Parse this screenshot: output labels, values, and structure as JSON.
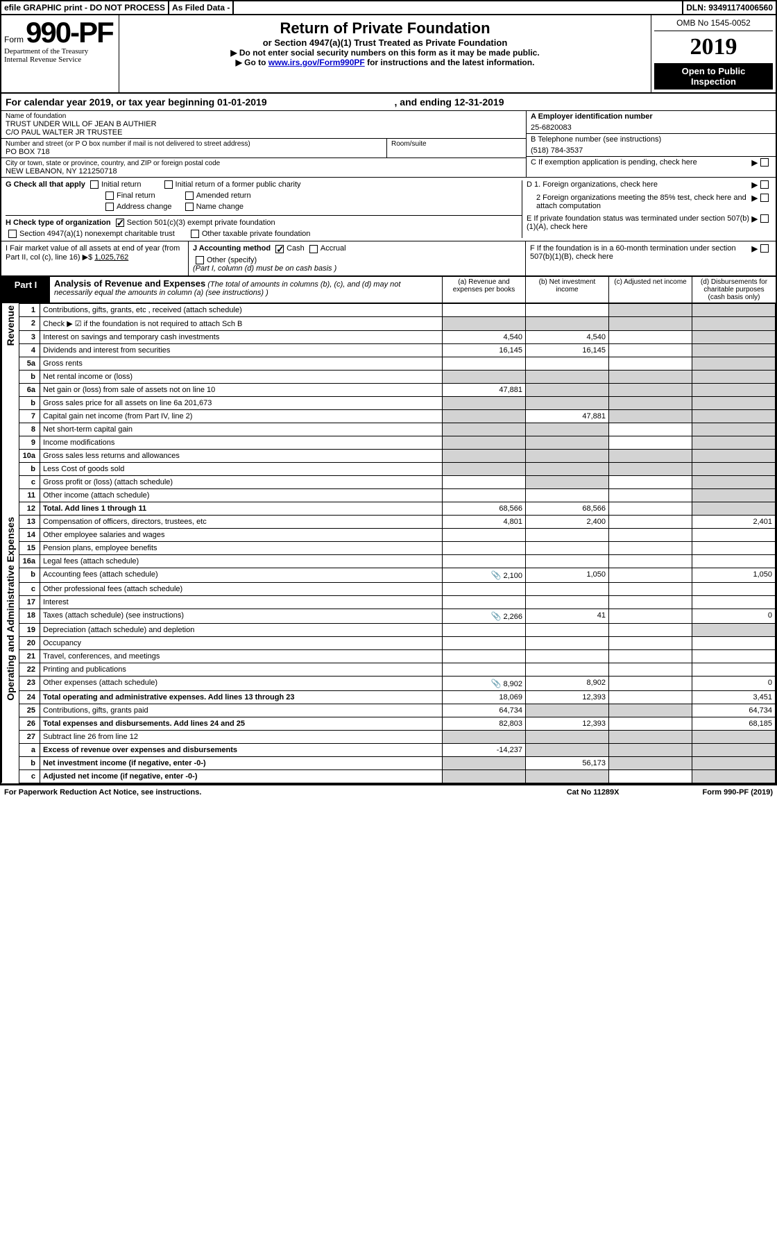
{
  "topbar": {
    "efile": "efile GRAPHIC print - DO NOT PROCESS",
    "asfiled": "As Filed Data -",
    "dln": "DLN: 93491174006560"
  },
  "header": {
    "form_prefix": "Form",
    "form_number": "990-PF",
    "dept1": "Department of the Treasury",
    "dept2": "Internal Revenue Service",
    "title": "Return of Private Foundation",
    "subtitle": "or Section 4947(a)(1) Trust Treated as Private Foundation",
    "instr1": "▶ Do not enter social security numbers on this form as it may be made public.",
    "instr2_pre": "▶ Go to ",
    "instr2_link": "www.irs.gov/Form990PF",
    "instr2_post": " for instructions and the latest information.",
    "omb": "OMB No 1545-0052",
    "year": "2019",
    "open": "Open to Public Inspection"
  },
  "cal_year": {
    "prefix": "For calendar year 2019, or tax year beginning ",
    "begin": "01-01-2019",
    "mid": " , and ending ",
    "end": "12-31-2019"
  },
  "name_block": {
    "label": "Name of foundation",
    "line1": "TRUST UNDER WILL OF JEAN B AUTHIER",
    "line2": "C/O PAUL WALTER JR TRUSTEE",
    "addr_label": "Number and street (or P O box number if mail is not delivered to street address)",
    "addr": "PO BOX 718",
    "room_label": "Room/suite",
    "city_label": "City or town, state or province, country, and ZIP or foreign postal code",
    "city": "NEW LEBANON, NY 121250718"
  },
  "right_block": {
    "a_label": "A Employer identification number",
    "a_val": "25-6820083",
    "b_label": "B Telephone number (see instructions)",
    "b_val": "(518) 784-3537",
    "c_label": "C If exemption application is pending, check here",
    "d1": "D 1. Foreign organizations, check here",
    "d2": "2 Foreign organizations meeting the 85% test, check here and attach computation",
    "e": "E If private foundation status was terminated under section 507(b)(1)(A), check here",
    "f": "F If the foundation is in a 60-month termination under section 507(b)(1)(B), check here"
  },
  "g_section": {
    "label": "G Check all that apply",
    "initial": "Initial return",
    "initial_former": "Initial return of a former public charity",
    "final": "Final return",
    "amended": "Amended return",
    "addr_change": "Address change",
    "name_change": "Name change"
  },
  "h_section": {
    "label": "H Check type of organization",
    "c3": "Section 501(c)(3) exempt private foundation",
    "trust": "Section 4947(a)(1) nonexempt charitable trust",
    "other": "Other taxable private foundation"
  },
  "i_section": {
    "label": "I Fair market value of all assets at end of year (from Part II, col (c), line 16) ▶$",
    "val": "1,025,762"
  },
  "j_section": {
    "label": "J Accounting method",
    "cash": "Cash",
    "accrual": "Accrual",
    "other": "Other (specify)",
    "note": "(Part I, column (d) must be on cash basis )"
  },
  "part1": {
    "label": "Part I",
    "title": "Analysis of Revenue and Expenses",
    "sub": " (The total of amounts in columns (b), (c), and (d) may not necessarily equal the amounts in column (a) (see instructions) )",
    "col_a": "(a) Revenue and expenses per books",
    "col_b": "(b) Net investment income",
    "col_c": "(c) Adjusted net income",
    "col_d": "(d) Disbursements for charitable purposes (cash basis only)"
  },
  "side_labels": {
    "revenue": "Revenue",
    "expenses": "Operating and Administrative Expenses"
  },
  "rows": [
    {
      "n": "1",
      "d": "Contributions, gifts, grants, etc , received (attach schedule)",
      "a": "",
      "b": "",
      "c": "",
      "dd": "",
      "cgrey": true,
      "dgrey": true
    },
    {
      "n": "2",
      "d": "Check ▶ ☑ if the foundation is not required to attach Sch B",
      "a": "",
      "b": "",
      "c": "",
      "dd": "",
      "agrey": true,
      "bgrey": true,
      "cgrey": true,
      "dgrey": true
    },
    {
      "n": "3",
      "d": "Interest on savings and temporary cash investments",
      "a": "4,540",
      "b": "4,540",
      "c": "",
      "dd": "",
      "dgrey": true
    },
    {
      "n": "4",
      "d": "Dividends and interest from securities",
      "a": "16,145",
      "b": "16,145",
      "c": "",
      "dd": "",
      "dgrey": true
    },
    {
      "n": "5a",
      "d": "Gross rents",
      "a": "",
      "b": "",
      "c": "",
      "dd": "",
      "dgrey": true
    },
    {
      "n": "b",
      "d": "Net rental income or (loss)",
      "a": "",
      "b": "",
      "c": "",
      "dd": "",
      "agrey": true,
      "bgrey": true,
      "cgrey": true,
      "dgrey": true
    },
    {
      "n": "6a",
      "d": "Net gain or (loss) from sale of assets not on line 10",
      "a": "47,881",
      "b": "",
      "c": "",
      "dd": "",
      "bgrey": true,
      "cgrey": true,
      "dgrey": true
    },
    {
      "n": "b",
      "d": "Gross sales price for all assets on line 6a          201,673",
      "a": "",
      "b": "",
      "c": "",
      "dd": "",
      "agrey": true,
      "bgrey": true,
      "cgrey": true,
      "dgrey": true
    },
    {
      "n": "7",
      "d": "Capital gain net income (from Part IV, line 2)",
      "a": "",
      "b": "47,881",
      "c": "",
      "dd": "",
      "agrey": true,
      "cgrey": true,
      "dgrey": true
    },
    {
      "n": "8",
      "d": "Net short-term capital gain",
      "a": "",
      "b": "",
      "c": "",
      "dd": "",
      "agrey": true,
      "bgrey": true,
      "dgrey": true
    },
    {
      "n": "9",
      "d": "Income modifications",
      "a": "",
      "b": "",
      "c": "",
      "dd": "",
      "agrey": true,
      "bgrey": true,
      "dgrey": true
    },
    {
      "n": "10a",
      "d": "Gross sales less returns and allowances",
      "a": "",
      "b": "",
      "c": "",
      "dd": "",
      "agrey": true,
      "bgrey": true,
      "cgrey": true,
      "dgrey": true
    },
    {
      "n": "b",
      "d": "Less Cost of goods sold",
      "a": "",
      "b": "",
      "c": "",
      "dd": "",
      "agrey": true,
      "bgrey": true,
      "cgrey": true,
      "dgrey": true
    },
    {
      "n": "c",
      "d": "Gross profit or (loss) (attach schedule)",
      "a": "",
      "b": "",
      "c": "",
      "dd": "",
      "bgrey": true,
      "dgrey": true
    },
    {
      "n": "11",
      "d": "Other income (attach schedule)",
      "a": "",
      "b": "",
      "c": "",
      "dd": "",
      "dgrey": true
    },
    {
      "n": "12",
      "d": "Total. Add lines 1 through 11",
      "a": "68,566",
      "b": "68,566",
      "c": "",
      "dd": "",
      "bold": true,
      "dgrey": true
    }
  ],
  "exp_rows": [
    {
      "n": "13",
      "d": "Compensation of officers, directors, trustees, etc",
      "a": "4,801",
      "b": "2,400",
      "c": "",
      "dd": "2,401"
    },
    {
      "n": "14",
      "d": "Other employee salaries and wages",
      "a": "",
      "b": "",
      "c": "",
      "dd": ""
    },
    {
      "n": "15",
      "d": "Pension plans, employee benefits",
      "a": "",
      "b": "",
      "c": "",
      "dd": ""
    },
    {
      "n": "16a",
      "d": "Legal fees (attach schedule)",
      "a": "",
      "b": "",
      "c": "",
      "dd": ""
    },
    {
      "n": "b",
      "d": "Accounting fees (attach schedule)",
      "a": "2,100",
      "b": "1,050",
      "c": "",
      "dd": "1,050",
      "clip": true
    },
    {
      "n": "c",
      "d": "Other professional fees (attach schedule)",
      "a": "",
      "b": "",
      "c": "",
      "dd": ""
    },
    {
      "n": "17",
      "d": "Interest",
      "a": "",
      "b": "",
      "c": "",
      "dd": ""
    },
    {
      "n": "18",
      "d": "Taxes (attach schedule) (see instructions)",
      "a": "2,266",
      "b": "41",
      "c": "",
      "dd": "0",
      "clip": true
    },
    {
      "n": "19",
      "d": "Depreciation (attach schedule) and depletion",
      "a": "",
      "b": "",
      "c": "",
      "dd": "",
      "dgrey": true
    },
    {
      "n": "20",
      "d": "Occupancy",
      "a": "",
      "b": "",
      "c": "",
      "dd": ""
    },
    {
      "n": "21",
      "d": "Travel, conferences, and meetings",
      "a": "",
      "b": "",
      "c": "",
      "dd": ""
    },
    {
      "n": "22",
      "d": "Printing and publications",
      "a": "",
      "b": "",
      "c": "",
      "dd": ""
    },
    {
      "n": "23",
      "d": "Other expenses (attach schedule)",
      "a": "8,902",
      "b": "8,902",
      "c": "",
      "dd": "0",
      "clip": true
    },
    {
      "n": "24",
      "d": "Total operating and administrative expenses. Add lines 13 through 23",
      "a": "18,069",
      "b": "12,393",
      "c": "",
      "dd": "3,451",
      "bold": true
    },
    {
      "n": "25",
      "d": "Contributions, gifts, grants paid",
      "a": "64,734",
      "b": "",
      "c": "",
      "dd": "64,734",
      "bgrey": true,
      "cgrey": true
    },
    {
      "n": "26",
      "d": "Total expenses and disbursements. Add lines 24 and 25",
      "a": "82,803",
      "b": "12,393",
      "c": "",
      "dd": "68,185",
      "bold": true
    }
  ],
  "final_rows": [
    {
      "n": "27",
      "d": "Subtract line 26 from line 12",
      "a": "",
      "b": "",
      "c": "",
      "dd": "",
      "agrey": true,
      "bgrey": true,
      "cgrey": true,
      "dgrey": true
    },
    {
      "n": "a",
      "d": "Excess of revenue over expenses and disbursements",
      "a": "-14,237",
      "b": "",
      "c": "",
      "dd": "",
      "bold": true,
      "bgrey": true,
      "cgrey": true,
      "dgrey": true
    },
    {
      "n": "b",
      "d": "Net investment income (if negative, enter -0-)",
      "a": "",
      "b": "56,173",
      "c": "",
      "dd": "",
      "bold": true,
      "agrey": true,
      "cgrey": true,
      "dgrey": true
    },
    {
      "n": "c",
      "d": "Adjusted net income (if negative, enter -0-)",
      "a": "",
      "b": "",
      "c": "",
      "dd": "",
      "bold": true,
      "agrey": true,
      "bgrey": true,
      "dgrey": true
    }
  ],
  "footer": {
    "left": "For Paperwork Reduction Act Notice, see instructions.",
    "mid": "Cat No 11289X",
    "right": "Form 990-PF (2019)"
  }
}
